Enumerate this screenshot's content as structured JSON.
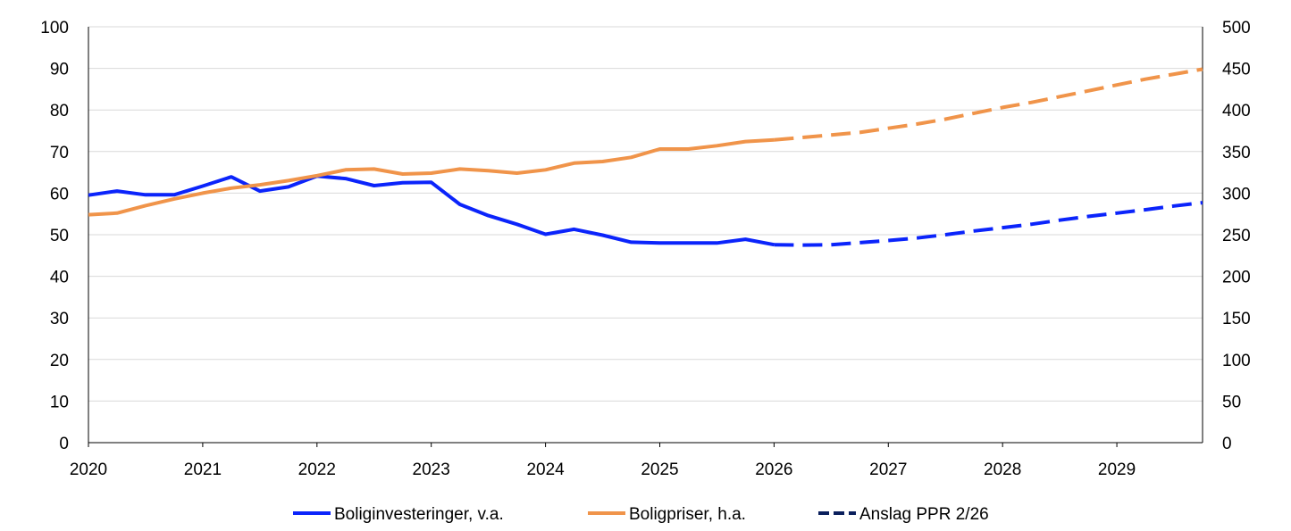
{
  "chart_data": {
    "type": "line",
    "x_axis": {
      "ticks": [
        "2020",
        "2021",
        "2022",
        "2023",
        "2024",
        "2025",
        "2026",
        "2027",
        "2028",
        "2029"
      ],
      "range": [
        2020.0,
        2029.75
      ]
    },
    "y_left": {
      "range": [
        0,
        100
      ],
      "ticks": [
        0,
        10,
        20,
        30,
        40,
        50,
        60,
        70,
        80,
        90,
        100
      ]
    },
    "y_right": {
      "range": [
        0,
        500
      ],
      "ticks": [
        0,
        50,
        100,
        150,
        200,
        250,
        300,
        350,
        400,
        450,
        500
      ]
    },
    "grid": true,
    "legend_position": "bottom",
    "series": [
      {
        "name": "Boliginvesteringer, v.a.",
        "axis": "left",
        "color": "#0b24fb",
        "solid": [
          [
            2020.0,
            59.5
          ],
          [
            2020.25,
            60.5
          ],
          [
            2020.5,
            59.6
          ],
          [
            2020.75,
            59.6
          ],
          [
            2021.0,
            61.7
          ],
          [
            2021.25,
            63.9
          ],
          [
            2021.5,
            60.5
          ],
          [
            2021.75,
            61.5
          ],
          [
            2022.0,
            64.1
          ],
          [
            2022.25,
            63.5
          ],
          [
            2022.5,
            61.8
          ],
          [
            2022.75,
            62.5
          ],
          [
            2023.0,
            62.6
          ],
          [
            2023.25,
            57.3
          ],
          [
            2023.5,
            54.6
          ],
          [
            2023.75,
            52.5
          ],
          [
            2024.0,
            50.1
          ],
          [
            2024.25,
            51.3
          ],
          [
            2024.5,
            49.9
          ],
          [
            2024.75,
            48.2
          ],
          [
            2025.0,
            48.0
          ],
          [
            2025.25,
            48.0
          ],
          [
            2025.5,
            48.0
          ],
          [
            2025.75,
            48.9
          ],
          [
            2026.0,
            47.6
          ]
        ],
        "forecast": [
          [
            2026.0,
            47.6
          ],
          [
            2026.25,
            47.5
          ],
          [
            2026.5,
            47.6
          ],
          [
            2026.75,
            48.1
          ],
          [
            2027.0,
            48.6
          ],
          [
            2027.25,
            49.2
          ],
          [
            2027.5,
            50.0
          ],
          [
            2027.75,
            50.9
          ],
          [
            2028.0,
            51.7
          ],
          [
            2028.25,
            52.5
          ],
          [
            2028.5,
            53.5
          ],
          [
            2028.75,
            54.4
          ],
          [
            2029.0,
            55.2
          ],
          [
            2029.25,
            56.0
          ],
          [
            2029.5,
            56.9
          ],
          [
            2029.75,
            57.7
          ]
        ]
      },
      {
        "name": "Boligpriser, h.a.",
        "axis": "right",
        "color": "#f0944a",
        "solid": [
          [
            2020.0,
            274
          ],
          [
            2020.25,
            276
          ],
          [
            2020.5,
            285
          ],
          [
            2020.75,
            293
          ],
          [
            2021.0,
            300
          ],
          [
            2021.25,
            306
          ],
          [
            2021.5,
            310
          ],
          [
            2021.75,
            315
          ],
          [
            2022.0,
            321
          ],
          [
            2022.25,
            328
          ],
          [
            2022.5,
            329
          ],
          [
            2022.75,
            323
          ],
          [
            2023.0,
            324
          ],
          [
            2023.25,
            329
          ],
          [
            2023.5,
            327
          ],
          [
            2023.75,
            324
          ],
          [
            2024.0,
            328
          ],
          [
            2024.25,
            336
          ],
          [
            2024.5,
            338
          ],
          [
            2024.75,
            343
          ],
          [
            2025.0,
            353
          ],
          [
            2025.25,
            353
          ],
          [
            2025.5,
            357
          ],
          [
            2025.75,
            362
          ],
          [
            2026.0,
            364
          ]
        ],
        "forecast": [
          [
            2026.0,
            364
          ],
          [
            2026.25,
            367
          ],
          [
            2026.5,
            370
          ],
          [
            2026.75,
            373
          ],
          [
            2027.0,
            378
          ],
          [
            2027.25,
            383
          ],
          [
            2027.5,
            389
          ],
          [
            2027.75,
            396
          ],
          [
            2028.0,
            403
          ],
          [
            2028.25,
            409
          ],
          [
            2028.5,
            416
          ],
          [
            2028.75,
            423
          ],
          [
            2029.0,
            430
          ],
          [
            2029.25,
            437
          ],
          [
            2029.5,
            443
          ],
          [
            2029.75,
            449
          ]
        ]
      }
    ],
    "legend": [
      {
        "label": "Boliginvesteringer, v.a.",
        "color": "#0b24fb",
        "style": "solid"
      },
      {
        "label": "Boligpriser, h.a.",
        "color": "#f0944a",
        "style": "solid"
      },
      {
        "label": "Anslag PPR 2/26",
        "color": "#0a1f5c",
        "style": "dashed"
      }
    ]
  }
}
